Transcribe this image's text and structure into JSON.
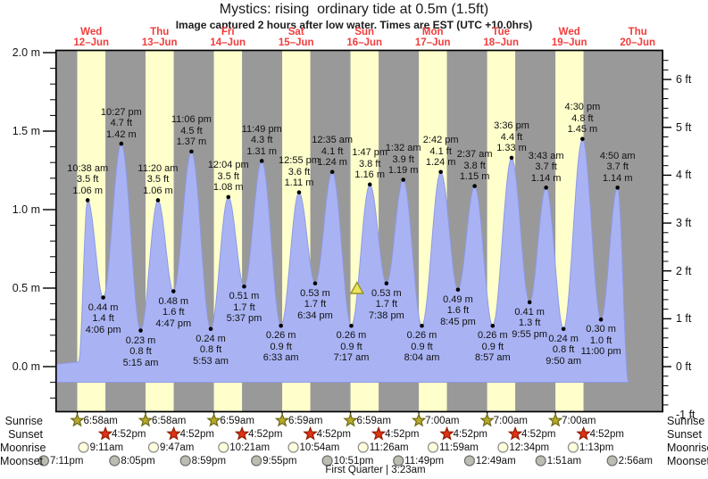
{
  "title": "Mystics: rising  ordinary tide at 0.5m (1.5ft)",
  "subtitle": "Image captured 2 hours after low water. Times are EST (UTC +10.0hrs)",
  "chart_data": {
    "type": "area",
    "title": "Mystics: rising  ordinary tide at 0.5m (1.5ft)",
    "ylabel_left": "meters",
    "ylabel_right": "feet",
    "ylim_m": [
      -0.29,
      2.02
    ],
    "days": [
      {
        "name": "Wed",
        "date": "12–Jun"
      },
      {
        "name": "Thu",
        "date": "13–Jun"
      },
      {
        "name": "Fri",
        "date": "14–Jun"
      },
      {
        "name": "Sat",
        "date": "15–Jun"
      },
      {
        "name": "Sun",
        "date": "16–Jun"
      },
      {
        "name": "Mon",
        "date": "17–Jun"
      },
      {
        "name": "Tue",
        "date": "18–Jun"
      },
      {
        "name": "Wed",
        "date": "19–Jun"
      },
      {
        "name": "Thu",
        "date": "20–Jun"
      }
    ],
    "y_ticks_left": [
      {
        "label": "2.0 m",
        "m": 2.0
      },
      {
        "label": "1.5 m",
        "m": 1.5
      },
      {
        "label": "1.0 m",
        "m": 1.0
      },
      {
        "label": "0.5 m",
        "m": 0.5
      },
      {
        "label": "0.0 m",
        "m": 0.0
      }
    ],
    "y_ticks_right": [
      {
        "label": "6 ft",
        "ft": 6
      },
      {
        "label": "5 ft",
        "ft": 5
      },
      {
        "label": "4 ft",
        "ft": 4
      },
      {
        "label": "3 ft",
        "ft": 3
      },
      {
        "label": "2 ft",
        "ft": 2
      },
      {
        "label": "1 ft",
        "ft": 1
      },
      {
        "label": "0 ft",
        "ft": 0
      },
      {
        "label": "-1 ft",
        "ft": -1
      }
    ],
    "tide_events": [
      {
        "kind": "high",
        "day": 0,
        "hour": 10.633,
        "m": 1.06,
        "time": "10:38 am",
        "ft_label": "3.5 ft",
        "m_label": "1.06 m"
      },
      {
        "kind": "low",
        "day": 0,
        "hour": 16.1,
        "m": 0.44,
        "time": "4:06 pm",
        "ft_label": "1.4 ft",
        "m_label": "0.44 m"
      },
      {
        "kind": "high",
        "day": 0,
        "hour": 22.45,
        "m": 1.42,
        "time": "10:27 pm",
        "ft_label": "4.7 ft",
        "m_label": "1.42 m"
      },
      {
        "kind": "low",
        "day": 1,
        "hour": 5.25,
        "m": 0.23,
        "time": "5:15 am",
        "ft_label": "0.8 ft",
        "m_label": "0.23 m"
      },
      {
        "kind": "high",
        "day": 1,
        "hour": 11.333,
        "m": 1.06,
        "time": "11:20 am",
        "ft_label": "3.5 ft",
        "m_label": "1.06 m"
      },
      {
        "kind": "low",
        "day": 1,
        "hour": 16.783,
        "m": 0.48,
        "time": "4:47 pm",
        "ft_label": "1.6 ft",
        "m_label": "0.48 m"
      },
      {
        "kind": "high",
        "day": 1,
        "hour": 23.1,
        "m": 1.37,
        "time": "11:06 pm",
        "ft_label": "4.5 ft",
        "m_label": "1.37 m"
      },
      {
        "kind": "low",
        "day": 2,
        "hour": 5.883,
        "m": 0.24,
        "time": "5:53 am",
        "ft_label": "0.8 ft",
        "m_label": "0.24 m"
      },
      {
        "kind": "high",
        "day": 2,
        "hour": 12.067,
        "m": 1.08,
        "time": "12:04 pm",
        "ft_label": "3.5 ft",
        "m_label": "1.08 m"
      },
      {
        "kind": "low",
        "day": 2,
        "hour": 17.617,
        "m": 0.51,
        "time": "5:37 pm",
        "ft_label": "1.7 ft",
        "m_label": "0.51 m"
      },
      {
        "kind": "high",
        "day": 2,
        "hour": 23.817,
        "m": 1.31,
        "time": "11:49 pm",
        "ft_label": "4.3 ft",
        "m_label": "1.31 m"
      },
      {
        "kind": "low",
        "day": 3,
        "hour": 6.55,
        "m": 0.26,
        "time": "6:33 am",
        "ft_label": "0.9 ft",
        "m_label": "0.26 m"
      },
      {
        "kind": "high",
        "day": 3,
        "hour": 12.917,
        "m": 1.11,
        "time": "12:55 pm",
        "ft_label": "3.6 ft",
        "m_label": "1.11 m"
      },
      {
        "kind": "low",
        "day": 3,
        "hour": 18.567,
        "m": 0.53,
        "time": "6:34 pm",
        "ft_label": "1.7 ft",
        "m_label": "0.53 m"
      },
      {
        "kind": "high",
        "day": 4,
        "hour": 0.583,
        "m": 1.24,
        "time": "12:35 am",
        "ft_label": "4.1 ft",
        "m_label": "1.24 m"
      },
      {
        "kind": "low",
        "day": 4,
        "hour": 7.283,
        "m": 0.26,
        "time": "7:17 am",
        "ft_label": "0.9 ft",
        "m_label": "0.26 m"
      },
      {
        "kind": "high",
        "day": 4,
        "hour": 13.783,
        "m": 1.16,
        "time": "1:47 pm",
        "ft_label": "3.8 ft",
        "m_label": "1.16 m"
      },
      {
        "kind": "low",
        "day": 4,
        "hour": 19.633,
        "m": 0.53,
        "time": "7:38 pm",
        "ft_label": "1.7 ft",
        "m_label": "0.53 m"
      },
      {
        "kind": "high",
        "day": 5,
        "hour": 1.533,
        "m": 1.19,
        "time": "1:32 am",
        "ft_label": "3.9 ft",
        "m_label": "1.19 m"
      },
      {
        "kind": "low",
        "day": 5,
        "hour": 8.067,
        "m": 0.26,
        "time": "8:04 am",
        "ft_label": "0.9 ft",
        "m_label": "0.26 m"
      },
      {
        "kind": "high",
        "day": 5,
        "hour": 14.7,
        "m": 1.24,
        "time": "2:42 pm",
        "ft_label": "4.1 ft",
        "m_label": "1.24 m"
      },
      {
        "kind": "low",
        "day": 5,
        "hour": 20.75,
        "m": 0.49,
        "time": "8:45 pm",
        "ft_label": "1.6 ft",
        "m_label": "0.49 m"
      },
      {
        "kind": "high",
        "day": 6,
        "hour": 2.617,
        "m": 1.15,
        "time": "2:37 am",
        "ft_label": "3.8 ft",
        "m_label": "1.15 m"
      },
      {
        "kind": "low",
        "day": 6,
        "hour": 8.95,
        "m": 0.26,
        "time": "8:57 am",
        "ft_label": "0.9 ft",
        "m_label": "0.26 m"
      },
      {
        "kind": "high",
        "day": 6,
        "hour": 15.6,
        "m": 1.33,
        "time": "3:36 pm",
        "ft_label": "4.4 ft",
        "m_label": "1.33 m"
      },
      {
        "kind": "low",
        "day": 6,
        "hour": 21.917,
        "m": 0.41,
        "time": "9:55 pm",
        "ft_label": "1.3 ft",
        "m_label": "0.41 m"
      },
      {
        "kind": "high",
        "day": 7,
        "hour": 3.717,
        "m": 1.14,
        "time": "3:43 am",
        "ft_label": "3.7 ft",
        "m_label": "1.14 m"
      },
      {
        "kind": "low",
        "day": 7,
        "hour": 9.833,
        "m": 0.24,
        "time": "9:50 am",
        "ft_label": "0.8 ft",
        "m_label": "0.24 m"
      },
      {
        "kind": "high",
        "day": 7,
        "hour": 16.5,
        "m": 1.45,
        "time": "4:30 pm",
        "ft_label": "4.8 ft",
        "m_label": "1.45 m"
      },
      {
        "kind": "low",
        "day": 7,
        "hour": 23.0,
        "m": 0.3,
        "time": "11:00 pm",
        "ft_label": "1.0 ft",
        "m_label": "0.30 m"
      },
      {
        "kind": "high",
        "day": 8,
        "hour": 4.833,
        "m": 1.14,
        "time": "4:50 am",
        "ft_label": "3.7 ft",
        "m_label": "1.14 m"
      }
    ],
    "current_marker": {
      "shape": "triangle",
      "day": 4,
      "hour": 9.283,
      "level_m": 0.5
    }
  },
  "astro": {
    "rows": [
      {
        "label": "Sunrise",
        "icon": "sunrise-star",
        "events": [
          {
            "time": "6:58am",
            "day": 0,
            "hour": 6.967
          },
          {
            "time": "6:58am",
            "day": 1,
            "hour": 6.967
          },
          {
            "time": "6:59am",
            "day": 2,
            "hour": 6.983
          },
          {
            "time": "6:59am",
            "day": 3,
            "hour": 6.983
          },
          {
            "time": "6:59am",
            "day": 4,
            "hour": 6.983
          },
          {
            "time": "7:00am",
            "day": 5,
            "hour": 7.0
          },
          {
            "time": "7:00am",
            "day": 6,
            "hour": 7.0
          },
          {
            "time": "7:00am",
            "day": 7,
            "hour": 7.0
          }
        ]
      },
      {
        "label": "Sunset",
        "icon": "sunset-star",
        "events": [
          {
            "time": "4:52pm",
            "day": 0,
            "hour": 16.867
          },
          {
            "time": "4:52pm",
            "day": 1,
            "hour": 16.867
          },
          {
            "time": "4:52pm",
            "day": 2,
            "hour": 16.867
          },
          {
            "time": "4:52pm",
            "day": 3,
            "hour": 16.867
          },
          {
            "time": "4:52pm",
            "day": 4,
            "hour": 16.867
          },
          {
            "time": "4:52pm",
            "day": 5,
            "hour": 16.867
          },
          {
            "time": "4:52pm",
            "day": 6,
            "hour": 16.867
          },
          {
            "time": "4:52pm",
            "day": 7,
            "hour": 16.867
          }
        ]
      },
      {
        "label": "Moonrise",
        "icon": "moonrise-circle",
        "events": [
          {
            "time": "9:11am",
            "day": 0,
            "hour": 9.183
          },
          {
            "time": "9:47am",
            "day": 1,
            "hour": 9.783
          },
          {
            "time": "10:21am",
            "day": 2,
            "hour": 10.35
          },
          {
            "time": "10:54am",
            "day": 3,
            "hour": 10.9
          },
          {
            "time": "11:26am",
            "day": 4,
            "hour": 11.433
          },
          {
            "time": "11:59am",
            "day": 5,
            "hour": 11.983
          },
          {
            "time": "12:34pm",
            "day": 6,
            "hour": 12.567
          },
          {
            "time": "1:13pm",
            "day": 7,
            "hour": 13.217
          }
        ]
      },
      {
        "label": "Moonset",
        "icon": "moonset-circle",
        "events": [
          {
            "time": "7:11pm",
            "day": -1,
            "hour": 19.183
          },
          {
            "time": "8:05pm",
            "day": 0,
            "hour": 20.083
          },
          {
            "time": "8:59pm",
            "day": 1,
            "hour": 20.983
          },
          {
            "time": "9:55pm",
            "day": 2,
            "hour": 21.917
          },
          {
            "time": "10:51pm",
            "day": 3,
            "hour": 22.85
          },
          {
            "time": "11:49pm",
            "day": 4,
            "hour": 23.817
          },
          {
            "time": "12:49am",
            "day": 6,
            "hour": 0.817
          },
          {
            "time": "1:51am",
            "day": 7,
            "hour": 1.85
          },
          {
            "time": "2:56am",
            "day": 8,
            "hour": 2.933
          }
        ]
      }
    ],
    "footer": "First Quarter | 3:23am"
  },
  "colors": {
    "night": "#999999",
    "daylight": "#ffffcc",
    "tide_fill": "#a9b3f3",
    "tide_stroke": "#8d9ae8",
    "date_red": "#f23c3c",
    "sunrise_star": "#b5aa2d",
    "sunrise_star_edge": "#6e6712",
    "sunset_star": "#e03315",
    "sunset_star_edge": "#8e1d00",
    "moonrise_fill": "#ffffdc",
    "moonrise_edge": "#8a8a8a",
    "moonset_fill": "#bcbcb0",
    "moonset_edge": "#6f6f6f",
    "marker_fill": "#ece45f",
    "marker_edge": "#97912a",
    "axis": "#000000",
    "dot": "#000000"
  }
}
